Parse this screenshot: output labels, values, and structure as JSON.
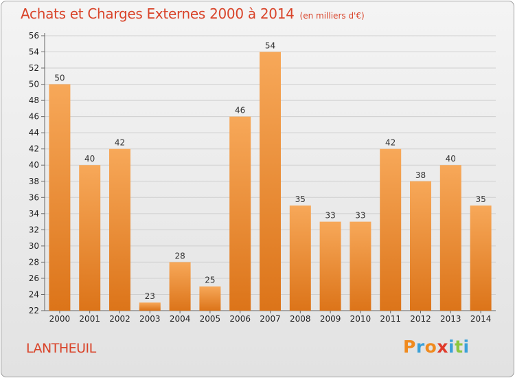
{
  "header": {
    "title": "Achats et Charges Externes 2000 à 2014",
    "subtitle": "(en milliers d'€)"
  },
  "footer": {
    "commune": "LANTHEUIL",
    "logo_text": "Proxiti"
  },
  "colors": {
    "title": "#d9442a",
    "bar_top": "#f7a859",
    "bar_bottom": "#dc7419",
    "logo_letters": [
      "#f08a1e",
      "#3aa0d8",
      "#f08a1e",
      "#e03a2a",
      "#3aa0d8",
      "#8cc63f",
      "#3aa0d8"
    ]
  },
  "chart_data": {
    "type": "bar",
    "categories": [
      "2000",
      "2001",
      "2002",
      "2003",
      "2004",
      "2005",
      "2006",
      "2007",
      "2008",
      "2009",
      "2010",
      "2011",
      "2012",
      "2013",
      "2014"
    ],
    "values": [
      50,
      40,
      42,
      23,
      28,
      25,
      46,
      54,
      35,
      33,
      33,
      42,
      38,
      40,
      35
    ],
    "ylim": [
      22,
      56
    ],
    "yticks": [
      22,
      24,
      26,
      28,
      30,
      32,
      34,
      36,
      38,
      40,
      42,
      44,
      46,
      48,
      50,
      52,
      54,
      56
    ],
    "grid": true,
    "data_labels": true
  }
}
